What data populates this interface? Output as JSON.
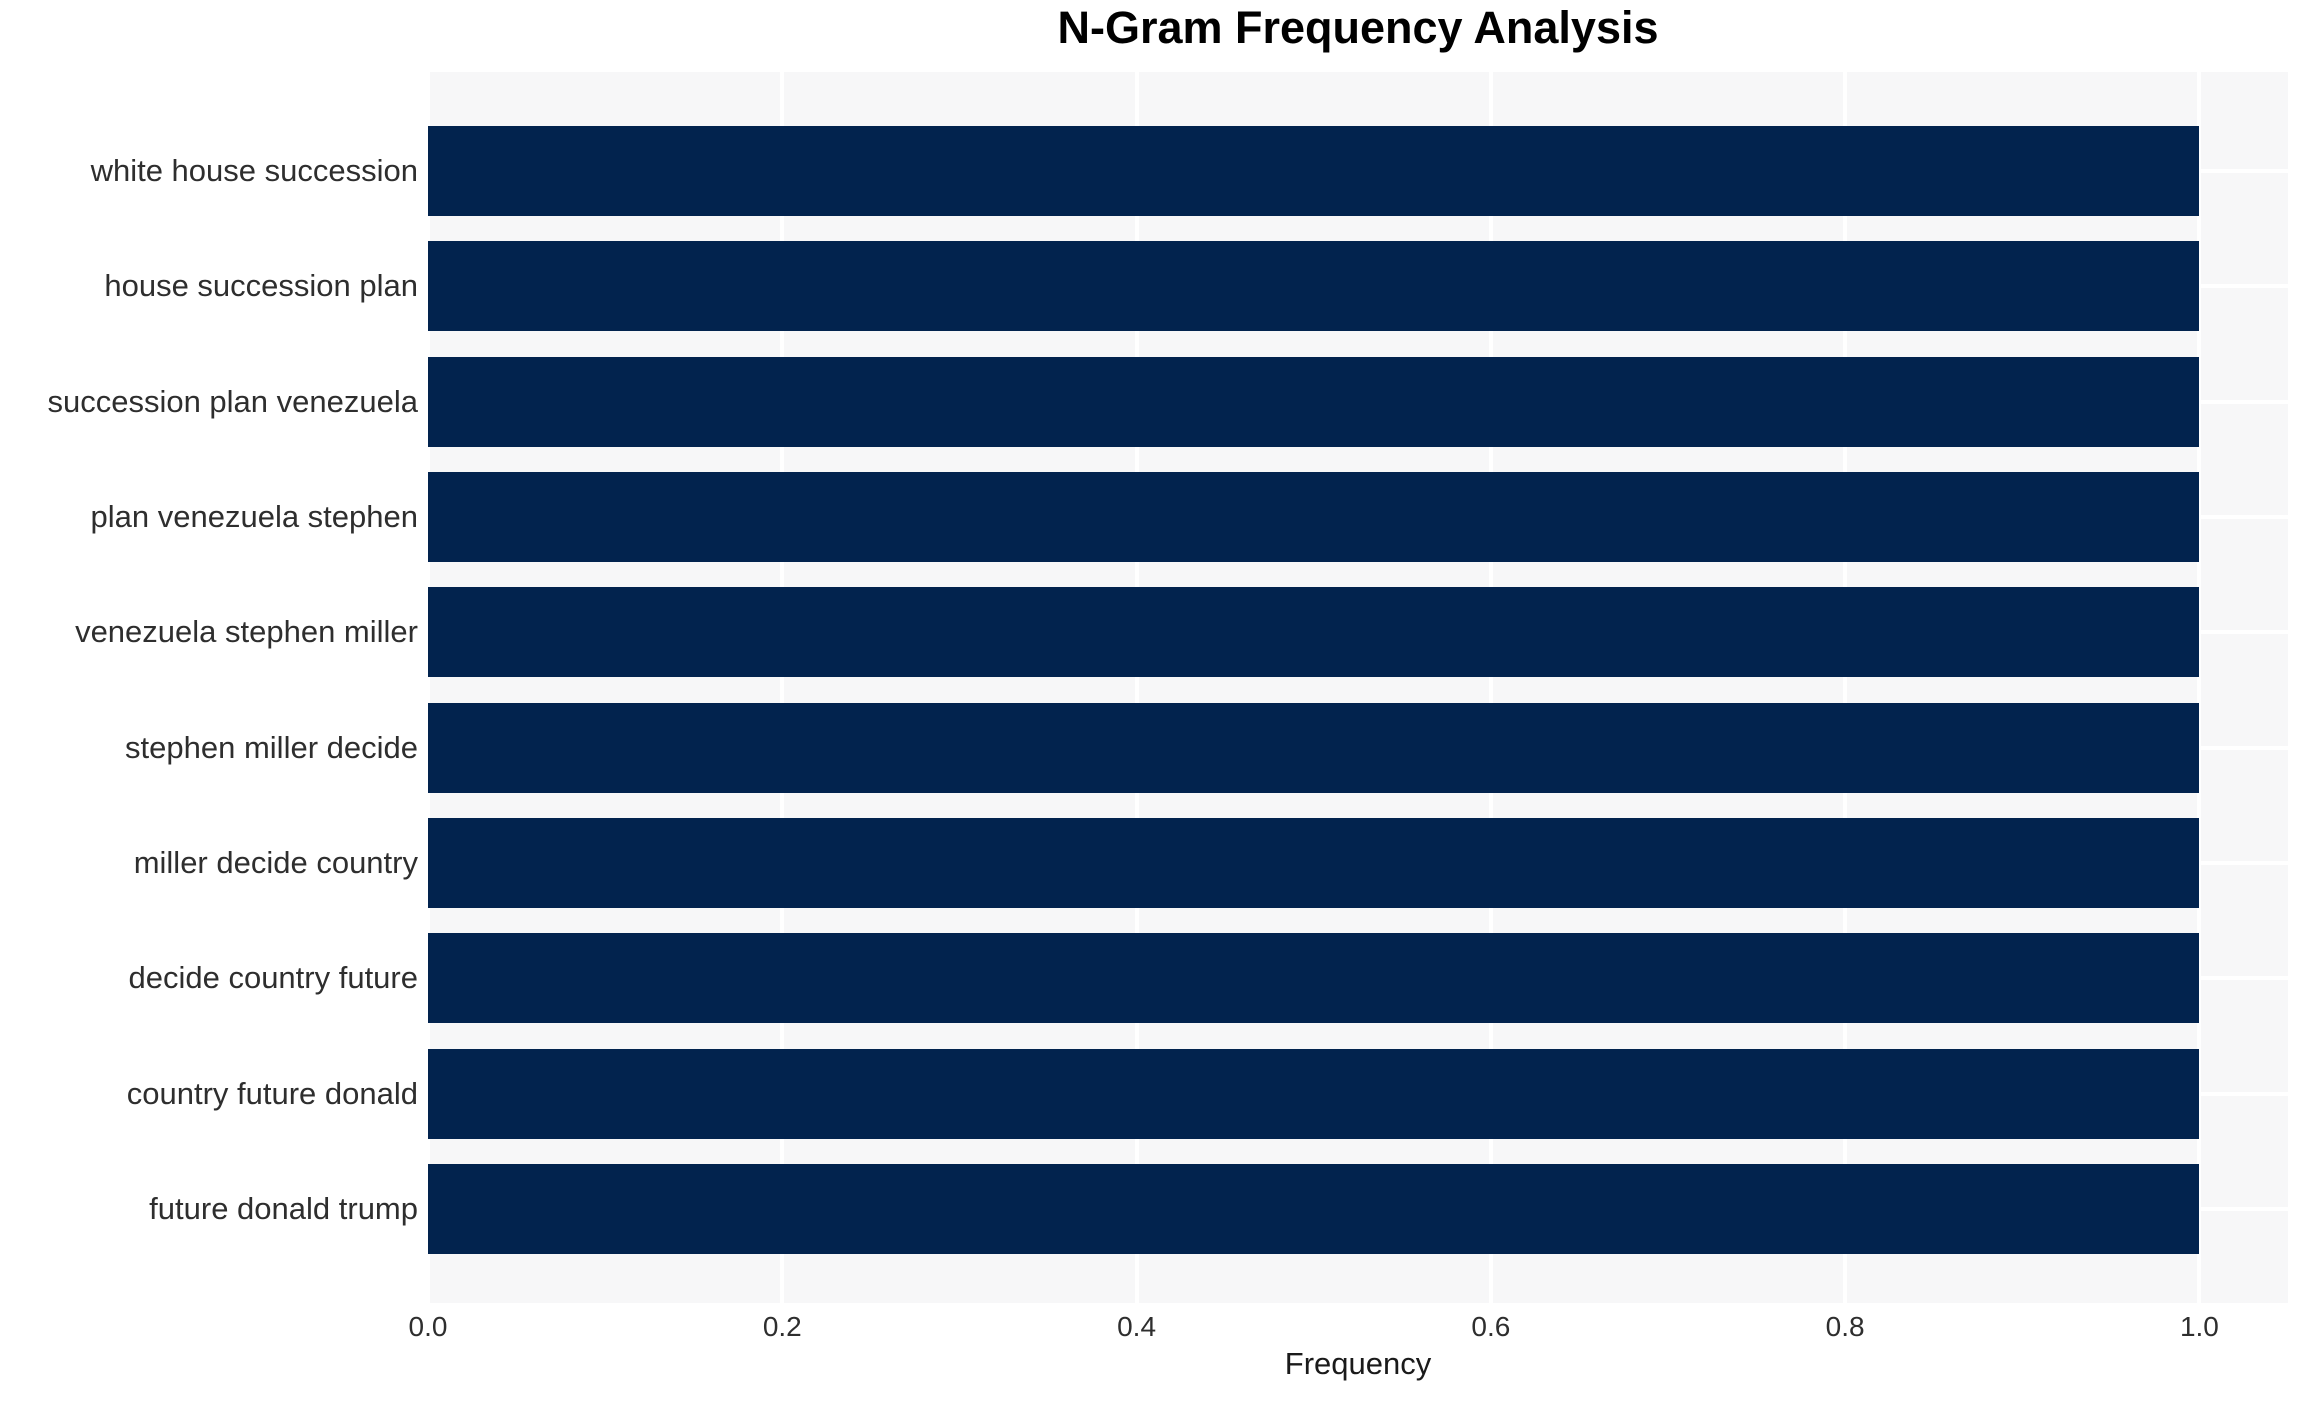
{
  "chart_data": {
    "type": "bar",
    "orientation": "horizontal",
    "title": "N-Gram Frequency Analysis",
    "xlabel": "Frequency",
    "ylabel": "",
    "categories": [
      "white house succession",
      "house succession plan",
      "succession plan venezuela",
      "plan venezuela stephen",
      "venezuela stephen miller",
      "stephen miller decide",
      "miller decide country",
      "decide country future",
      "country future donald",
      "future donald trump"
    ],
    "values": [
      1.0,
      1.0,
      1.0,
      1.0,
      1.0,
      1.0,
      1.0,
      1.0,
      1.0,
      1.0
    ],
    "xlim": [
      0,
      1.05
    ],
    "xticks": [
      0.0,
      0.2,
      0.4,
      0.6,
      0.8,
      1.0
    ],
    "xtick_labels": [
      "0.0",
      "0.2",
      "0.4",
      "0.6",
      "0.8",
      "1.0"
    ],
    "grid": true,
    "gridline_positions": "white gridlines at every x tick and at every category center, drawn beneath bars",
    "legend": false,
    "colors": {
      "bar": "#02234e",
      "plot_background": "#f7f7f8",
      "figure_background": "#ffffff",
      "gridline": "#ffffff",
      "tick_label": "#2e2e2e",
      "axis_label": "#1a1a1a",
      "title": "#000000"
    }
  }
}
